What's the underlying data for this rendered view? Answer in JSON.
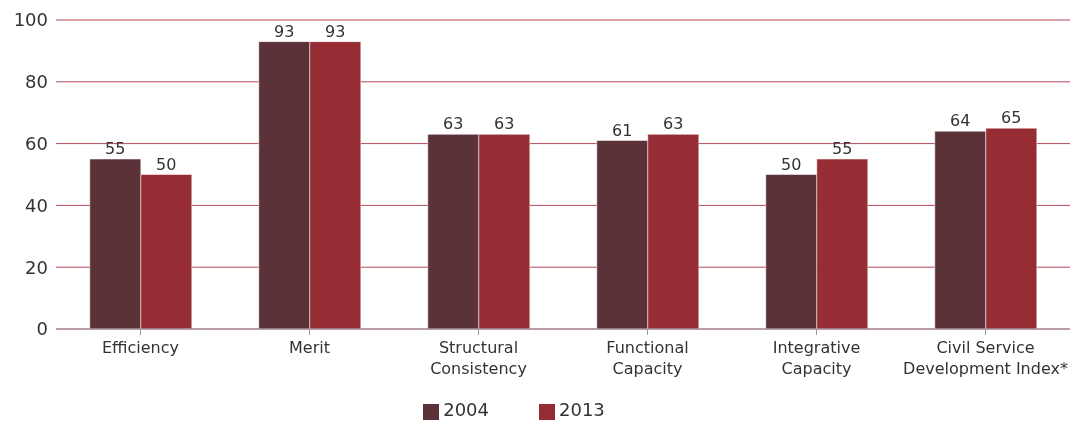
{
  "chart_data": {
    "type": "bar",
    "categories": [
      "Efficiency",
      "Merit",
      "Structural Consistency",
      "Functional Capacity",
      "Integrative Capacity",
      "Civil Service Development Index*"
    ],
    "series": [
      {
        "name": "2004",
        "color": "#5a3237",
        "values": [
          55,
          93,
          63,
          61,
          50,
          64
        ]
      },
      {
        "name": "2013",
        "color": "#962d35",
        "values": [
          50,
          93,
          63,
          63,
          55,
          65
        ]
      }
    ],
    "ylim": [
      0,
      100
    ],
    "yticks": [
      0,
      20,
      40,
      60,
      80,
      100
    ],
    "grid": "y",
    "legend": "bottom",
    "data_labels": true
  }
}
